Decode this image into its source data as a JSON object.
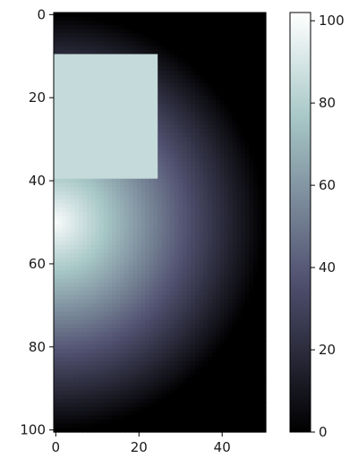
{
  "chart_data": {
    "type": "heatmap",
    "colormap": "bone",
    "image_shape": {
      "rows": 101,
      "cols": 51
    },
    "x_axis": {
      "lim": [
        0,
        51
      ],
      "ticks": [
        0,
        20,
        40
      ],
      "tick_labels": [
        "0",
        "20",
        "40"
      ]
    },
    "y_axis": {
      "lim": [
        101,
        0
      ],
      "inverted": true,
      "ticks": [
        0,
        20,
        40,
        60,
        80,
        100
      ],
      "tick_labels": [
        "0",
        "20",
        "40",
        "60",
        "80",
        "100"
      ]
    },
    "field": {
      "shape": "half-disc radial gradient",
      "center": [
        0,
        50
      ],
      "radius": 50,
      "value_at_center": 100,
      "value_at_edge": 0,
      "outside_value": 0
    },
    "rect_patch": {
      "x_range": [
        0,
        24
      ],
      "y_range": [
        10,
        39
      ],
      "value": 85
    },
    "colorbar": {
      "range": [
        0,
        102
      ],
      "ticks": [
        0,
        20,
        40,
        60,
        80,
        100
      ],
      "tick_labels": [
        "0",
        "20",
        "40",
        "60",
        "80",
        "100"
      ]
    }
  }
}
